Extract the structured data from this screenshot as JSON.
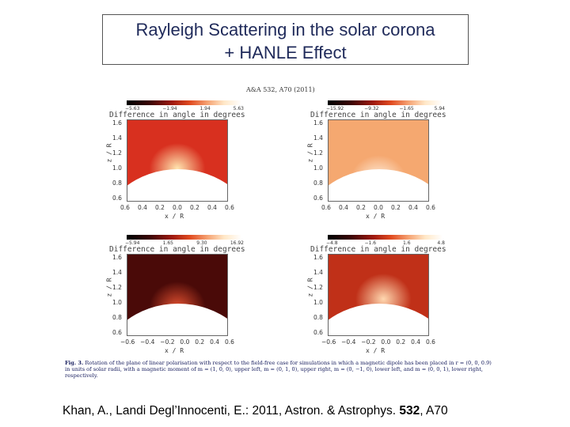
{
  "title": {
    "line1": "Rayleigh Scattering in the solar corona",
    "line2": "+ HANLE Effect"
  },
  "journal_header": "A&A 532, A70 (2011)",
  "panels": [
    {
      "name": "upper-left",
      "colorbar_ticks": [
        "−5.63",
        "−1.94",
        "1.94",
        "5.63"
      ],
      "title": "Difference in angle in degrees",
      "yticks": [
        "1.6",
        "1.4",
        "1.2",
        "1.0",
        "0.8",
        "0.6"
      ],
      "xticks": [
        "0.6",
        "0.4",
        "0.2",
        "0.0",
        "0.2",
        "0.4",
        "0.6"
      ],
      "ylabel": "z / R",
      "xlabel": "x / R",
      "colors": {
        "bg": "#d8301f",
        "glow": "#ffe6b0"
      }
    },
    {
      "name": "upper-right",
      "colorbar_ticks": [
        "−15.92",
        "−9.32",
        "−1.65",
        "5.94"
      ],
      "title": "Difference in angle in degrees",
      "yticks": [
        "1.6",
        "1.4",
        "1.2",
        "1.0",
        "0.8",
        "0.6"
      ],
      "xticks": [
        "0.6",
        "0.4",
        "0.2",
        "0.0",
        "0.2",
        "0.4",
        "0.6"
      ],
      "ylabel": "z / R",
      "xlabel": "x / R",
      "colors": {
        "bg": "#f5a870",
        "glow": "#fff4e6"
      }
    },
    {
      "name": "lower-left",
      "colorbar_ticks": [
        "−5.94",
        "1.65",
        "9.30",
        "16.92"
      ],
      "title": "Difference in angle in degrees",
      "yticks": [
        "1.6",
        "1.4",
        "1.2",
        "1.0",
        "0.8",
        "0.6"
      ],
      "xticks": [
        "−0.6",
        "−0.4",
        "−0.2",
        "0.0",
        "0.2",
        "0.4",
        "0.6"
      ],
      "ylabel": "z / R",
      "xlabel": "x / R",
      "colors": {
        "bg": "#4a0a08",
        "glow": "#e05030"
      }
    },
    {
      "name": "lower-right",
      "colorbar_ticks": [
        "−4.8",
        "−1.6",
        "1.6",
        "4.8"
      ],
      "title": "Difference in angle in degrees",
      "yticks": [
        "1.6",
        "1.4",
        "1.2",
        "1.0",
        "0.8",
        "0.6"
      ],
      "xticks": [
        "−0.6",
        "−0.4",
        "−0.2",
        "0.0",
        "0.2",
        "0.4",
        "0.6"
      ],
      "ylabel": "z / R",
      "xlabel": "x / R",
      "colors": {
        "bg": "#c03018",
        "glow": "#ffd8b0"
      }
    }
  ],
  "caption": {
    "label": "Fig. 3.",
    "text": "Rotation of the plane of linear polarisation with respect to the field-free case for simulations in which a magnetic dipole has been placed in r = (0, 0, 0.9) in units of solar radii, with a magnetic moment of m = (1, 0, 0), upper left, m = (0, 1, 0), upper right, m = (0, −1, 0), lower left, and m = (0, 0, 1), lower right, respectively."
  },
  "citation": {
    "prefix": "Khan, A., Landi Degl’Innocenti, E.: 2011, Astron. & Astrophys. ",
    "volume": "532",
    "suffix": ", A70"
  }
}
